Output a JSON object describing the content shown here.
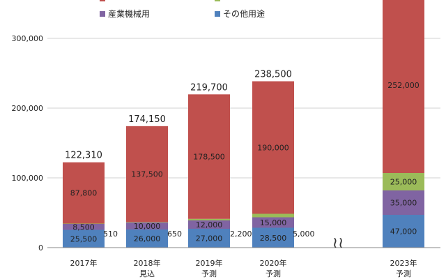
{
  "chart_data": {
    "type": "bar",
    "stacked": true,
    "categories": [
      [
        "2017年"
      ],
      [
        "2018年",
        "見込"
      ],
      [
        "2019年",
        "予測"
      ],
      [
        "2020年",
        "予測"
      ],
      [
        "2023年",
        "予測"
      ]
    ],
    "series": [
      {
        "name": "その他用途",
        "color": "#4f81bd",
        "values": [
          25500,
          26000,
          27000,
          28500,
          47000
        ]
      },
      {
        "name": "産業機械用",
        "color": "#8064a2",
        "values": [
          8500,
          10000,
          12000,
          15000,
          35000
        ]
      },
      {
        "name": "",
        "color": "#9bbb59",
        "values": [
          510,
          650,
          2200,
          5000,
          25000
        ]
      },
      {
        "name": "",
        "color": "#c0504d",
        "values": [
          87800,
          137500,
          178500,
          190000,
          252000
        ]
      }
    ],
    "segment_labels": [
      [
        "25,500",
        "26,000",
        "27,000",
        "28,500",
        "47,000"
      ],
      [
        "8,500",
        "10,000",
        "12,000",
        "15,000",
        "35,000"
      ],
      [
        "510",
        "650",
        "2,200",
        "5,000",
        "25,000"
      ],
      [
        "87,800",
        "137,500",
        "178,500",
        "190,000",
        "252,000"
      ]
    ],
    "totals": [
      "122,310",
      "174,150",
      "219,700",
      "238,500",
      ""
    ],
    "y_ticks": [
      "0",
      "100,000",
      "200,000",
      "300,000"
    ],
    "ylim": [
      0,
      345000
    ],
    "axis_break_symbol": "≀≀",
    "grid": true,
    "legend": "top",
    "title": "",
    "xlabel": "",
    "ylabel": ""
  }
}
